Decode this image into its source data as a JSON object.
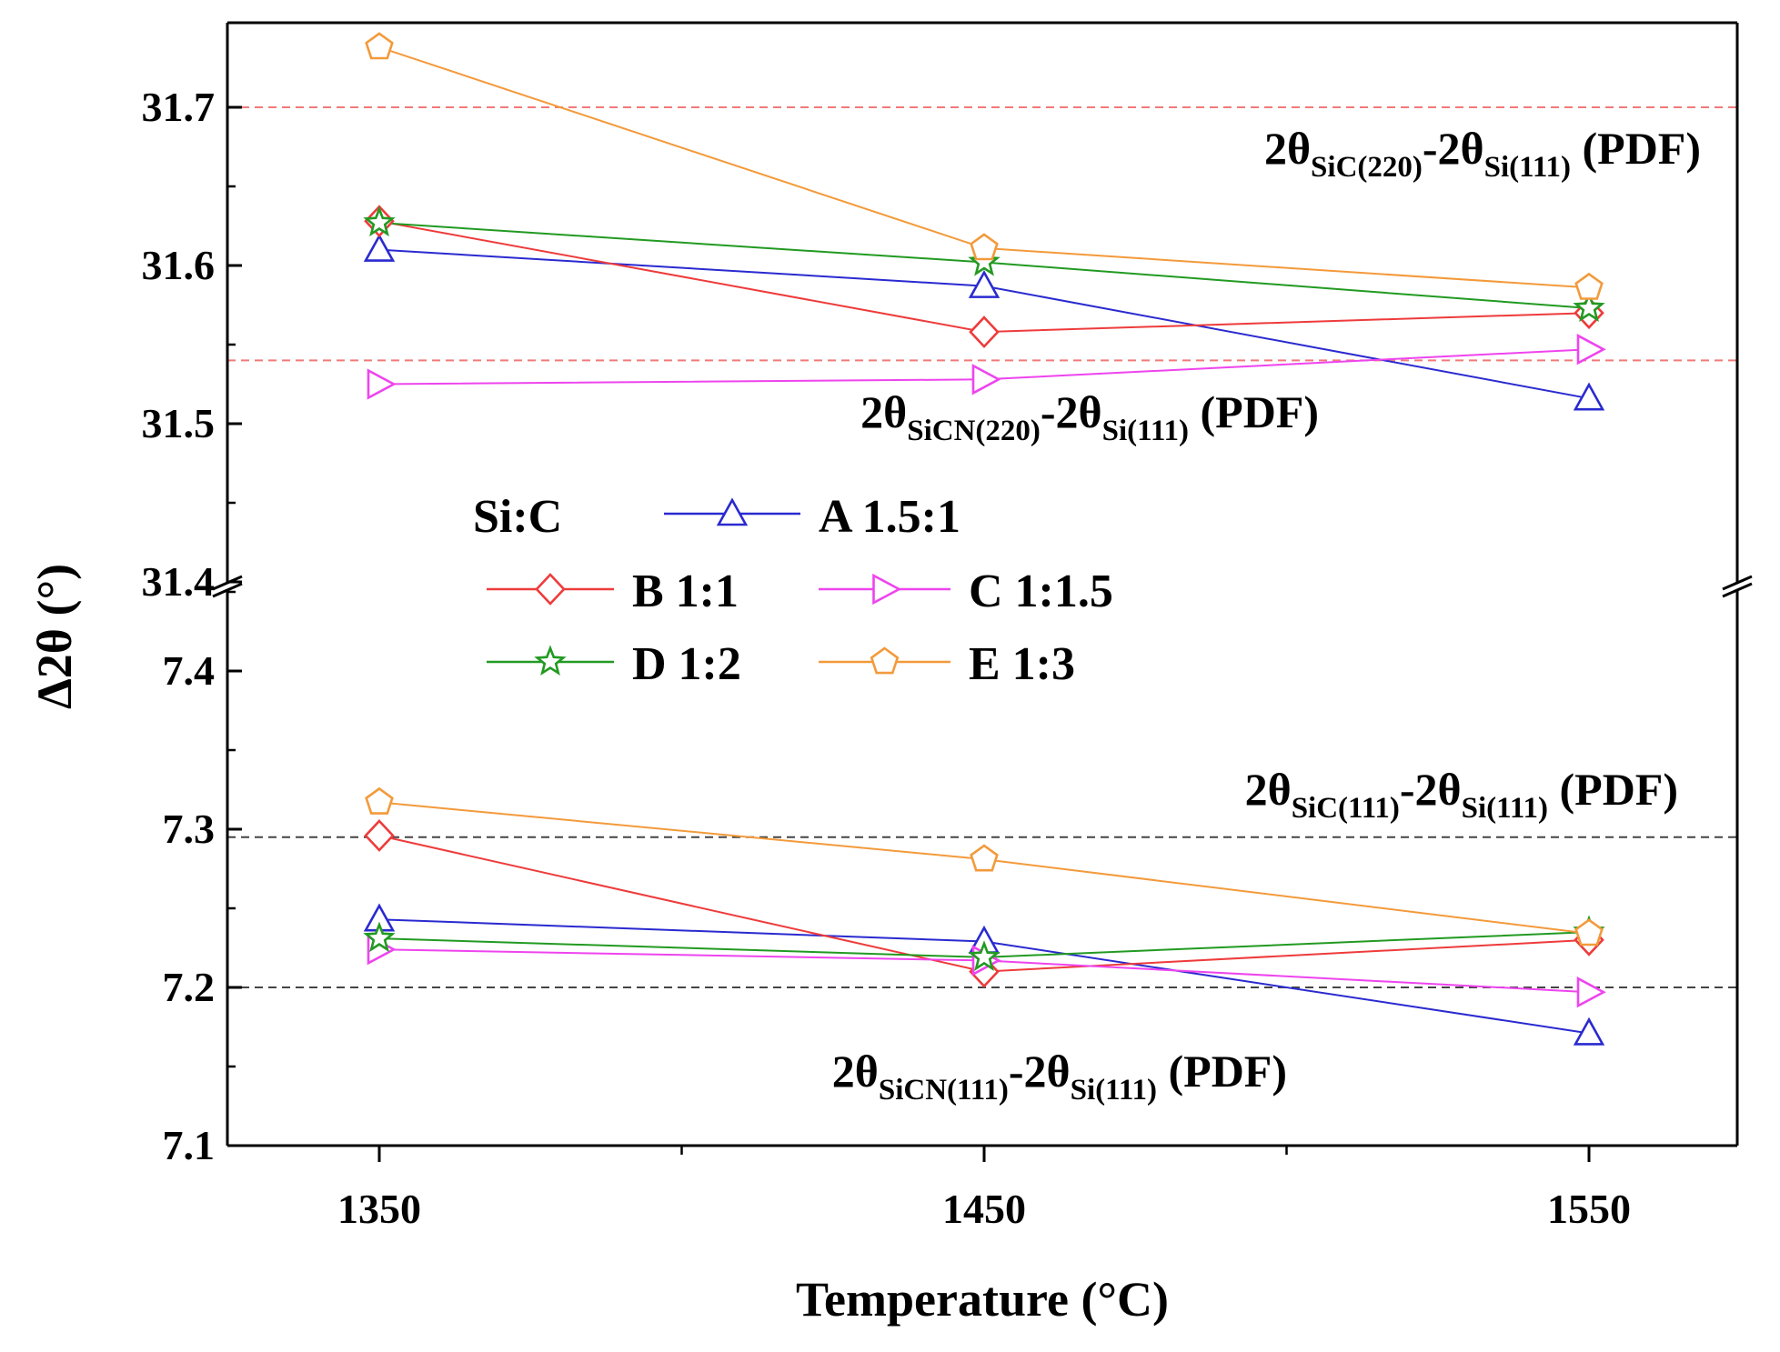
{
  "chart_data": {
    "type": "line",
    "title": "",
    "xlabel": "Temperature (°C)",
    "ylabel": "Δ2θ (°)",
    "x": [
      1350,
      1450,
      1550
    ],
    "x_tick_labels": [
      "1350",
      "1450",
      "1550"
    ],
    "xlim": [
      1325,
      1575
    ],
    "axis_break": true,
    "upper_panel": {
      "ylim": [
        31.4,
        31.75
      ],
      "y_tick_labels": [
        "31.4",
        "31.5",
        "31.6",
        "31.7"
      ],
      "reference_lines": [
        {
          "value": 31.7,
          "color": "#f07a7a",
          "style": "dashed",
          "main": "2θ",
          "sub1": "SiC(220)",
          "mid": "-2θ",
          "sub2": "Si(111)",
          "tail": " (PDF)"
        },
        {
          "value": 31.54,
          "color": "#f07a7a",
          "style": "dashed",
          "main": "2θ",
          "sub1": "SiCN(220)",
          "mid": "-2θ",
          "sub2": "Si(111)",
          "tail": " (PDF)"
        }
      ],
      "series": [
        {
          "name": "A 1.5:1",
          "marker": "triangle-up",
          "color": "#2a2ad0",
          "values": [
            31.61,
            31.587,
            31.516
          ]
        },
        {
          "name": "B 1:1",
          "marker": "diamond",
          "color": "#ee3b3b",
          "values": [
            31.628,
            31.558,
            31.57
          ]
        },
        {
          "name": "C 1:1.5",
          "marker": "triangle-right",
          "color": "#ee44ee",
          "values": [
            31.525,
            31.528,
            31.547
          ]
        },
        {
          "name": "D 1:2",
          "marker": "star",
          "color": "#229a22",
          "values": [
            31.627,
            31.602,
            31.573
          ]
        },
        {
          "name": "E 1:3",
          "marker": "pentagon",
          "color": "#f39a3b",
          "values": [
            31.738,
            31.611,
            31.586
          ]
        }
      ]
    },
    "lower_panel": {
      "ylim": [
        7.1,
        7.45
      ],
      "y_tick_labels": [
        "7.1",
        "7.2",
        "7.3",
        "7.4"
      ],
      "reference_lines": [
        {
          "value": 7.295,
          "color": "#444444",
          "style": "dashed",
          "main": "2θ",
          "sub1": "SiC(111)",
          "mid": "-2θ",
          "sub2": "Si(111)",
          "tail": " (PDF)"
        },
        {
          "value": 7.2,
          "color": "#444444",
          "style": "dashed",
          "main": "2θ",
          "sub1": "SiCN(111)",
          "mid": "-2θ",
          "sub2": "Si(111)",
          "tail": " (PDF)"
        }
      ],
      "series": [
        {
          "name": "A 1.5:1",
          "marker": "triangle-up",
          "color": "#2a2ad0",
          "values": [
            7.243,
            7.229,
            7.171
          ]
        },
        {
          "name": "B 1:1",
          "marker": "diamond",
          "color": "#ee3b3b",
          "values": [
            7.296,
            7.21,
            7.23
          ]
        },
        {
          "name": "C 1:1.5",
          "marker": "triangle-right",
          "color": "#ee44ee",
          "values": [
            7.224,
            7.217,
            7.197
          ]
        },
        {
          "name": "D 1:2",
          "marker": "star",
          "color": "#229a22",
          "values": [
            7.231,
            7.219,
            7.235
          ]
        },
        {
          "name": "E 1:3",
          "marker": "pentagon",
          "color": "#f39a3b",
          "values": [
            7.317,
            7.281,
            7.234
          ]
        }
      ]
    },
    "legend": {
      "title": "Si:C",
      "entries": [
        "A 1.5:1",
        "B 1:1",
        "C 1:1.5",
        "D 1:2",
        "E  1:3"
      ],
      "placement": "center"
    }
  }
}
